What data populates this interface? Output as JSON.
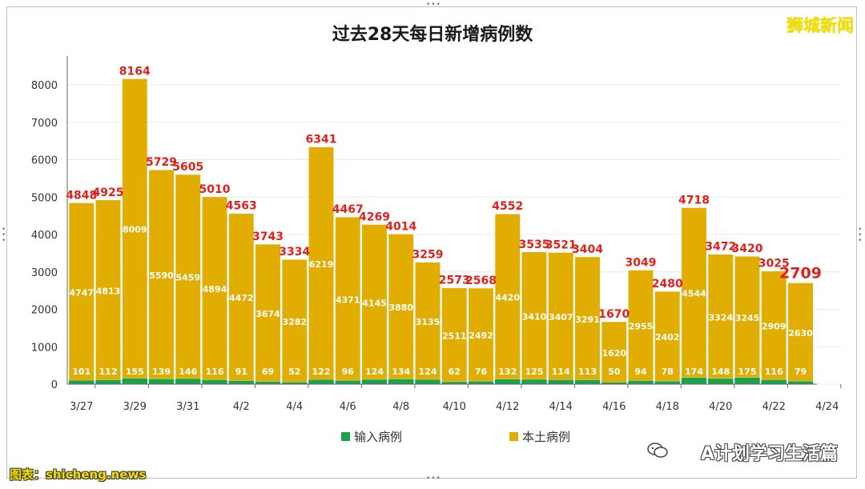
{
  "chart_data": {
    "type": "bar",
    "stacked": true,
    "title": "过去28天每日新增病例数",
    "categories": [
      "3/27",
      "3/28",
      "3/29",
      "3/30",
      "3/31",
      "4/1",
      "4/2",
      "4/3",
      "4/4",
      "4/5",
      "4/6",
      "4/7",
      "4/8",
      "4/9",
      "4/10",
      "4/11",
      "4/12",
      "4/13",
      "4/14",
      "4/15",
      "4/16",
      "4/17",
      "4/18",
      "4/19",
      "4/20",
      "4/21",
      "4/22",
      "4/23"
    ],
    "x_tick_labels": [
      "3/27",
      "3/29",
      "3/31",
      "4/2",
      "4/4",
      "4/6",
      "4/8",
      "4/10",
      "4/12",
      "4/14",
      "4/16",
      "4/18",
      "4/20",
      "4/22",
      "4/24"
    ],
    "series": [
      {
        "name": "输入病例",
        "color": "#1aa34a",
        "values": [
          101,
          112,
          155,
          139,
          146,
          116,
          91,
          69,
          52,
          122,
          96,
          124,
          134,
          124,
          62,
          76,
          132,
          125,
          114,
          113,
          50,
          94,
          78,
          174,
          148,
          175,
          116,
          79
        ]
      },
      {
        "name": "本土病例",
        "color": "#e1ad00",
        "values": [
          4747,
          4813,
          8009,
          5590,
          5459,
          4894,
          4472,
          3674,
          3282,
          6219,
          4371,
          4145,
          3880,
          3135,
          2511,
          2492,
          4420,
          3410,
          3407,
          3291,
          1620,
          2955,
          2402,
          4544,
          3324,
          3245,
          2909,
          2630
        ]
      }
    ],
    "totals": [
      4848,
      4925,
      8164,
      5729,
      5605,
      5010,
      4563,
      3743,
      3334,
      6341,
      4467,
      4269,
      4014,
      3259,
      2573,
      2568,
      4552,
      3535,
      3521,
      3404,
      1670,
      3049,
      2480,
      4718,
      3472,
      3420,
      3025,
      2709
    ],
    "y_ticks": [
      0,
      1000,
      2000,
      3000,
      4000,
      5000,
      6000,
      7000,
      8000
    ],
    "ylim": [
      0,
      8600
    ],
    "grid": true,
    "legend_position": "bottom",
    "total_label_color": "#e0211b",
    "highlight_last_total": true
  },
  "overlay": {
    "brand": "狮城新闻",
    "wechat_account": "A计划学习生活篇",
    "source_watermark": "图表：shicheng.news"
  }
}
